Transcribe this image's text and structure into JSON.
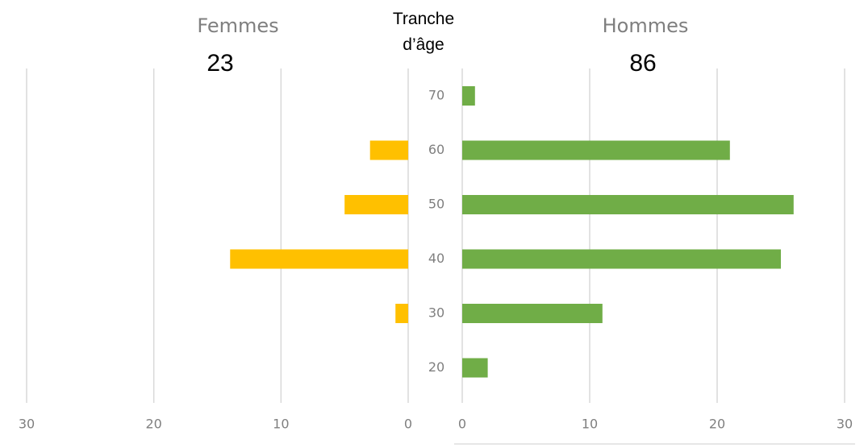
{
  "chart_data": {
    "type": "pyramid",
    "y_label": "Tranche d’âge",
    "categories": [
      "70",
      "60",
      "50",
      "40",
      "30",
      "20"
    ],
    "series": [
      {
        "name": "Femmes",
        "total": "23",
        "color": "#ffc000",
        "values": [
          0,
          3,
          5,
          14,
          1,
          0
        ],
        "xlim": [
          0,
          30
        ],
        "xticks": [
          0,
          10,
          20,
          30
        ]
      },
      {
        "name": "Hommes",
        "total": "86",
        "color": "#70ad47",
        "values": [
          1,
          21,
          26,
          25,
          11,
          2
        ],
        "xlim": [
          0,
          30
        ],
        "xticks": [
          0,
          10,
          20,
          30
        ]
      }
    ],
    "grid": true
  }
}
